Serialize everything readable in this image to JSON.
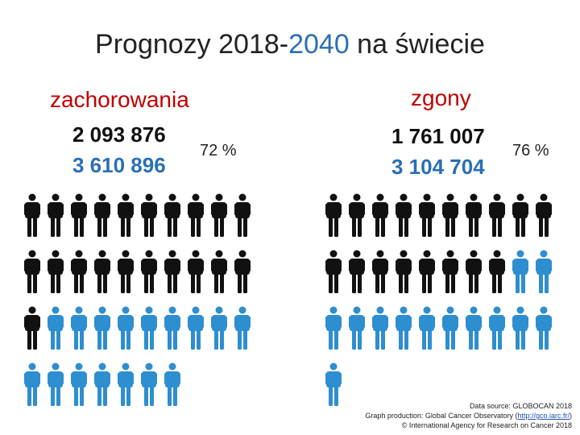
{
  "title": {
    "prefix": "Prognozy 2018-",
    "accent": "2040",
    "suffix": " na świecie"
  },
  "colors": {
    "black": "#111111",
    "blue": "#2d8ed0",
    "red": "#c00000",
    "accent": "#2a6fb5"
  },
  "incidence": {
    "label": "zachorowania",
    "value_2018": "2 093 876",
    "value_2040": "3 610 896",
    "percent": "72 %",
    "icons_total": 37,
    "icons_black": 21
  },
  "mortality": {
    "label": "zgony",
    "value_2018": "1 761 007",
    "value_2040": "3 104 704",
    "percent": "76 %",
    "icons_total": 31,
    "icons_black": 18
  },
  "credits": {
    "line1": "Data source: GLOBOCAN 2018",
    "line2_prefix": "Graph production: Global Cancer Observatory (",
    "line2_link": "http://gco.iarc.fr/",
    "line2_suffix": ")",
    "line3": "© International Agency for Research on Cancer 2018"
  }
}
